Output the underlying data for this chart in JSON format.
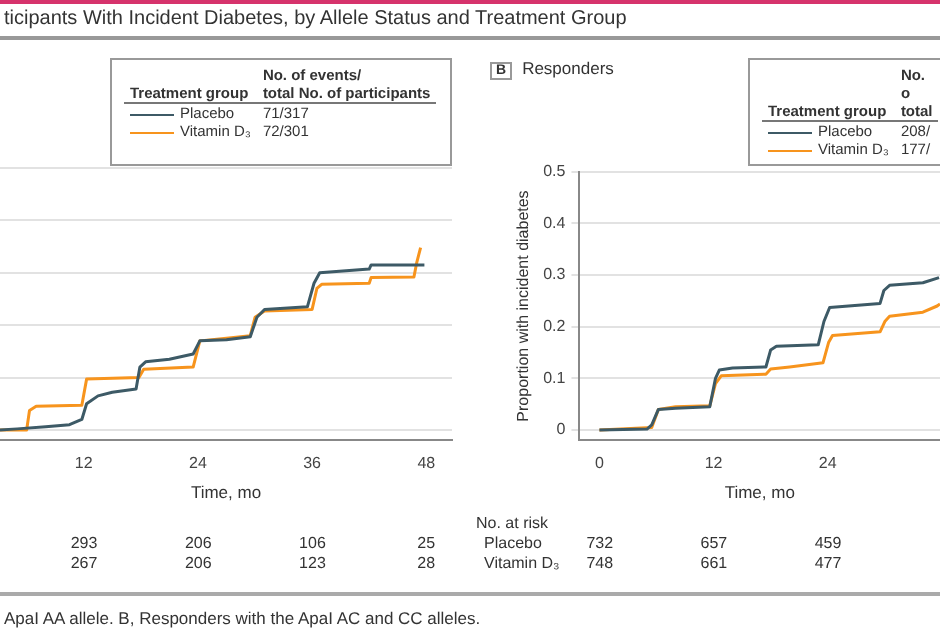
{
  "chart_data": [
    {
      "type": "line",
      "title": "ticipants With Incident Diabetes, by Allele Status and Treatment Group",
      "xlabel": "Time, mo",
      "legend_title": "Treatment group",
      "legend": "top",
      "grid": "y",
      "marker": "none",
      "line_style": "solid",
      "tick_labels": "x",
      "xlim": [
        3.2,
        50.7
      ],
      "xticks": [
        12,
        24,
        36,
        48
      ],
      "ylim": [
        -0.02,
        0.5
      ],
      "yticks": [
        0,
        0.1,
        0.2,
        0.3,
        0.4,
        0.5
      ],
      "series": [
        {
          "name": "Placebo",
          "color": "#3d5a66",
          "x": [
            3.2,
            5,
            8,
            10.5,
            11.8,
            12.3,
            13.5,
            15,
            17.5,
            17.9,
            18.5,
            21,
            23.5,
            24.2,
            27,
            29.5,
            30.2,
            31,
            35.5,
            36.2,
            36.8,
            42,
            42.2,
            47.8
          ],
          "values": [
            0,
            0.002,
            0.006,
            0.01,
            0.02,
            0.05,
            0.065,
            0.072,
            0.078,
            0.12,
            0.13,
            0.135,
            0.145,
            0.17,
            0.172,
            0.178,
            0.215,
            0.23,
            0.235,
            0.28,
            0.3,
            0.307,
            0.315,
            0.315
          ]
        },
        {
          "name": "Vitamin D₃",
          "color": "#f7941d",
          "x": [
            3.2,
            6,
            6.3,
            7,
            11.8,
            12.3,
            17.8,
            18.3,
            23.5,
            24.2,
            27,
            29.5,
            30,
            31,
            36,
            36.5,
            37,
            42,
            42.2,
            46.7,
            47,
            47.4
          ],
          "values": [
            0,
            0,
            0.037,
            0.045,
            0.047,
            0.097,
            0.1,
            0.116,
            0.12,
            0.17,
            0.175,
            0.18,
            0.215,
            0.227,
            0.23,
            0.27,
            0.278,
            0.28,
            0.291,
            0.292,
            0.32,
            0.348
          ]
        }
      ],
      "annotations": [
        "No. of events/\ntotal No. of participants",
        "71/317",
        "72/301",
        "ApaI AA allele. B, Responders with the ApaI AC and CC alleles.",
        "293",
        "206",
        "106",
        "25",
        "267",
        "206",
        "123",
        "28"
      ]
    },
    {
      "type": "line",
      "title": "Responders",
      "subtitle": "B",
      "xlabel": "Time, mo",
      "ylabel": "Proportion with incident diabetes",
      "legend_title": "Treatment group",
      "legend": "top right",
      "grid": "y",
      "marker": "none",
      "line_style": "solid",
      "xlim": [
        -2.1,
        35.8
      ],
      "xticks": [
        0,
        12,
        24
      ],
      "ylim": [
        -0.02,
        0.5
      ],
      "yticks": [
        0,
        0.1,
        0.2,
        0.3,
        0.4,
        0.5
      ],
      "series": [
        {
          "name": "Placebo",
          "color": "#3d5a66",
          "x": [
            0,
            5,
            5.5,
            6.2,
            8,
            11.6,
            12.2,
            12.6,
            14,
            17.5,
            18,
            18.6,
            23,
            23.6,
            24.2,
            29.5,
            29.9,
            30.5,
            34,
            35.7
          ],
          "values": [
            0,
            0.002,
            0.01,
            0.04,
            0.042,
            0.045,
            0.1,
            0.116,
            0.12,
            0.122,
            0.155,
            0.162,
            0.165,
            0.21,
            0.237,
            0.245,
            0.27,
            0.28,
            0.285,
            0.295
          ]
        },
        {
          "name": "Vitamin D₃",
          "color": "#f7941d",
          "x": [
            0,
            5.5,
            6.2,
            8,
            11.6,
            12.2,
            12.8,
            17.5,
            18,
            20,
            23.5,
            24.1,
            24.5,
            29.5,
            30,
            30.5,
            34,
            35.5,
            35.8
          ],
          "values": [
            0,
            0.005,
            0.04,
            0.045,
            0.047,
            0.09,
            0.105,
            0.108,
            0.118,
            0.122,
            0.13,
            0.17,
            0.183,
            0.19,
            0.21,
            0.22,
            0.228,
            0.24,
            0.244
          ]
        }
      ],
      "annotations": [
        "No. o\ntotal",
        "208/",
        "177/",
        "No. at risk",
        "Placebo",
        "Vitamin D₃",
        "732",
        "657",
        "459",
        "748",
        "661",
        "477"
      ]
    }
  ]
}
